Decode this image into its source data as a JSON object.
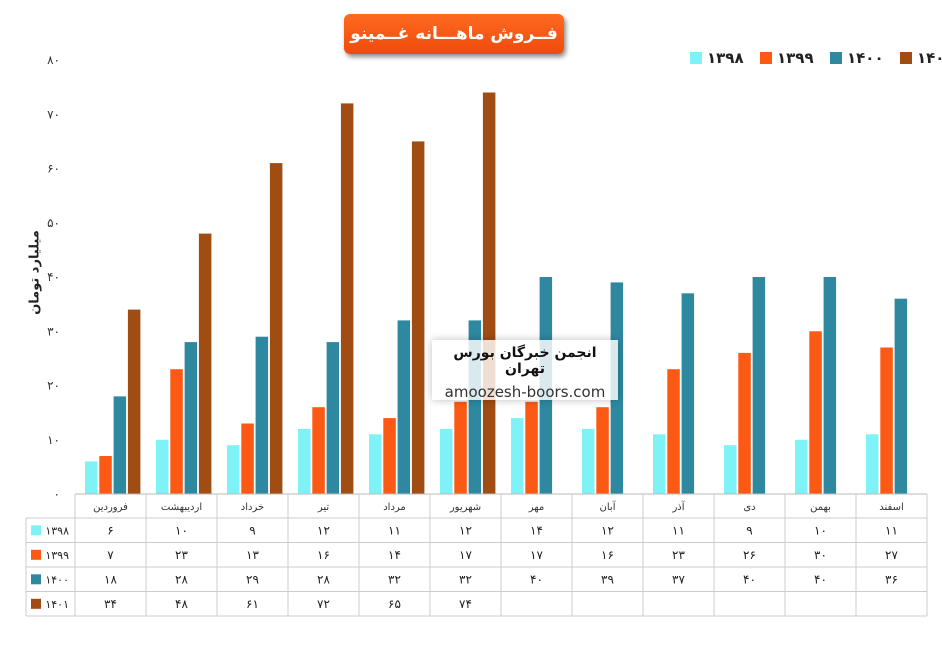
{
  "title": "فــروش ماهـــانه غــمینو",
  "ylabel": "میلیارد تومان",
  "watermark": {
    "line1": "انجمن خبرگان بورس تهران",
    "line2": "amoozesh-boors.com"
  },
  "chart_data": {
    "type": "bar",
    "title": "فــروش ماهـــانه غــمینو",
    "ylabel": "میلیارد تومان",
    "ylim": [
      0,
      80
    ],
    "yticks": [
      "۰",
      "۱۰",
      "۲۰",
      "۳۰",
      "۴۰",
      "۵۰",
      "۶۰",
      "۷۰",
      "۸۰"
    ],
    "legend_position": "top-right",
    "grid": false,
    "categories": [
      "فروردین",
      "اردیبهشت",
      "خرداد",
      "تیر",
      "مرداد",
      "شهریور",
      "مهر",
      "آبان",
      "آذر",
      "دی",
      "بهمن",
      "اسفند"
    ],
    "series": [
      {
        "name": "۱۳۹۸",
        "color": "#7ff2f7",
        "values": [
          6,
          10,
          9,
          12,
          11,
          12,
          14,
          12,
          11,
          9,
          10,
          11
        ],
        "labels": [
          "۶",
          "۱۰",
          "۹",
          "۱۲",
          "۱۱",
          "۱۲",
          "۱۴",
          "۱۲",
          "۱۱",
          "۹",
          "۱۰",
          "۱۱"
        ]
      },
      {
        "name": "۱۳۹۹",
        "color": "#fc5a14",
        "values": [
          7,
          23,
          13,
          16,
          14,
          17,
          17,
          16,
          23,
          26,
          30,
          27
        ],
        "labels": [
          "۷",
          "۲۳",
          "۱۳",
          "۱۶",
          "۱۴",
          "۱۷",
          "۱۷",
          "۱۶",
          "۲۳",
          "۲۶",
          "۳۰",
          "۲۷"
        ]
      },
      {
        "name": "۱۴۰۰",
        "color": "#2e88a0",
        "values": [
          18,
          28,
          29,
          28,
          32,
          32,
          40,
          39,
          37,
          40,
          40,
          36
        ],
        "labels": [
          "۱۸",
          "۲۸",
          "۲۹",
          "۲۸",
          "۳۲",
          "۳۲",
          "۴۰",
          "۳۹",
          "۳۷",
          "۴۰",
          "۴۰",
          "۳۶"
        ]
      },
      {
        "name": "۱۴۰۱",
        "color": "#a04c12",
        "values": [
          34,
          48,
          61,
          72,
          65,
          74,
          null,
          null,
          null,
          null,
          null,
          null
        ],
        "labels": [
          "۳۴",
          "۴۸",
          "۶۱",
          "۷۲",
          "۶۵",
          "۷۴",
          "",
          "",
          "",
          "",
          "",
          ""
        ]
      }
    ]
  }
}
